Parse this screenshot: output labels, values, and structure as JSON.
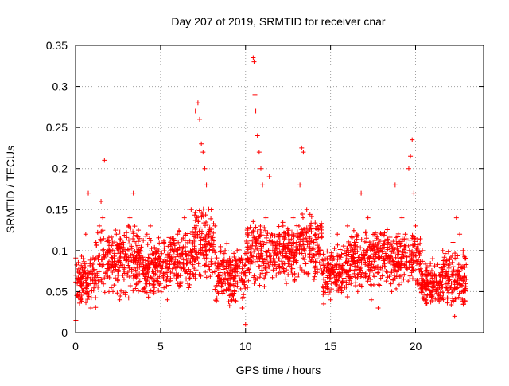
{
  "chart_data": {
    "type": "scatter",
    "title": "Day 207 of 2019, SRMTID for receiver cnar",
    "xlabel": "GPS time / hours",
    "ylabel": "SRMTID / TECUs",
    "xlim": [
      0,
      24
    ],
    "ylim": [
      0,
      0.35
    ],
    "xticks": [
      0,
      5,
      10,
      15,
      20
    ],
    "xtick_labels": [
      "0",
      "5",
      "10",
      "15",
      "20"
    ],
    "yticks": [
      0,
      0.05,
      0.1,
      0.15,
      0.2,
      0.25,
      0.3,
      0.35
    ],
    "ytick_labels": [
      "0",
      "0.05",
      "0.1",
      "0.15",
      "0.2",
      "0.25",
      "0.3",
      "0.35"
    ],
    "grid": true,
    "marker": "+",
    "color": "#ff0000",
    "points": [
      [
        0.02,
        0.015
      ],
      [
        0.1,
        0.06
      ],
      [
        0.2,
        0.065
      ],
      [
        0.3,
        0.04
      ],
      [
        0.45,
        0.09
      ],
      [
        0.6,
        0.12
      ],
      [
        0.75,
        0.17
      ],
      [
        0.9,
        0.03
      ],
      [
        1.0,
        0.08
      ],
      [
        1.2,
        0.11
      ],
      [
        1.4,
        0.13
      ],
      [
        1.5,
        0.16
      ],
      [
        1.6,
        0.14
      ],
      [
        1.7,
        0.21
      ],
      [
        1.85,
        0.07
      ],
      [
        2.0,
        0.1
      ],
      [
        2.2,
        0.05
      ],
      [
        2.4,
        0.12
      ],
      [
        2.6,
        0.04
      ],
      [
        2.8,
        0.11
      ],
      [
        3.0,
        0.09
      ],
      [
        3.2,
        0.14
      ],
      [
        3.4,
        0.17
      ],
      [
        3.6,
        0.06
      ],
      [
        3.8,
        0.1
      ],
      [
        4.0,
        0.08
      ],
      [
        4.2,
        0.12
      ],
      [
        4.4,
        0.13
      ],
      [
        4.6,
        0.05
      ],
      [
        4.8,
        0.09
      ],
      [
        5.0,
        0.06
      ],
      [
        5.2,
        0.11
      ],
      [
        5.4,
        0.04
      ],
      [
        5.6,
        0.1
      ],
      [
        5.8,
        0.07
      ],
      [
        6.0,
        0.12
      ],
      [
        6.2,
        0.09
      ],
      [
        6.4,
        0.14
      ],
      [
        6.6,
        0.06
      ],
      [
        6.8,
        0.15
      ],
      [
        7.0,
        0.1
      ],
      [
        7.05,
        0.27
      ],
      [
        7.2,
        0.28
      ],
      [
        7.3,
        0.26
      ],
      [
        7.4,
        0.23
      ],
      [
        7.5,
        0.22
      ],
      [
        7.6,
        0.2
      ],
      [
        7.7,
        0.18
      ],
      [
        7.8,
        0.12
      ],
      [
        8.0,
        0.09
      ],
      [
        8.2,
        0.13
      ],
      [
        8.4,
        0.07
      ],
      [
        8.6,
        0.05
      ],
      [
        8.8,
        0.1
      ],
      [
        9.0,
        0.08
      ],
      [
        9.2,
        0.04
      ],
      [
        9.4,
        0.06
      ],
      [
        9.6,
        0.09
      ],
      [
        9.8,
        0.03
      ],
      [
        10.0,
        0.01
      ],
      [
        10.1,
        0.12
      ],
      [
        10.3,
        0.08
      ],
      [
        10.45,
        0.335
      ],
      [
        10.5,
        0.33
      ],
      [
        10.55,
        0.29
      ],
      [
        10.6,
        0.27
      ],
      [
        10.7,
        0.24
      ],
      [
        10.8,
        0.22
      ],
      [
        10.9,
        0.2
      ],
      [
        11.0,
        0.18
      ],
      [
        11.2,
        0.14
      ],
      [
        11.4,
        0.19
      ],
      [
        11.6,
        0.1
      ],
      [
        11.8,
        0.07
      ],
      [
        12.0,
        0.12
      ],
      [
        12.2,
        0.13
      ],
      [
        12.4,
        0.06
      ],
      [
        12.6,
        0.09
      ],
      [
        12.8,
        0.14
      ],
      [
        13.0,
        0.11
      ],
      [
        13.2,
        0.18
      ],
      [
        13.3,
        0.225
      ],
      [
        13.4,
        0.22
      ],
      [
        13.6,
        0.15
      ],
      [
        13.8,
        0.13
      ],
      [
        14.0,
        0.11
      ],
      [
        14.2,
        0.09
      ],
      [
        14.4,
        0.08
      ],
      [
        14.6,
        0.035
      ],
      [
        14.8,
        0.06
      ],
      [
        15.0,
        0.04
      ],
      [
        15.2,
        0.09
      ],
      [
        15.4,
        0.12
      ],
      [
        15.6,
        0.07
      ],
      [
        15.8,
        0.1
      ],
      [
        16.0,
        0.13
      ],
      [
        16.2,
        0.06
      ],
      [
        16.4,
        0.11
      ],
      [
        16.6,
        0.05
      ],
      [
        16.8,
        0.17
      ],
      [
        17.0,
        0.09
      ],
      [
        17.2,
        0.14
      ],
      [
        17.4,
        0.04
      ],
      [
        17.6,
        0.1
      ],
      [
        17.8,
        0.03
      ],
      [
        18.0,
        0.12
      ],
      [
        18.2,
        0.08
      ],
      [
        18.4,
        0.11
      ],
      [
        18.6,
        0.05
      ],
      [
        18.8,
        0.18
      ],
      [
        19.0,
        0.1
      ],
      [
        19.2,
        0.14
      ],
      [
        19.4,
        0.12
      ],
      [
        19.6,
        0.2
      ],
      [
        19.7,
        0.215
      ],
      [
        19.8,
        0.235
      ],
      [
        19.9,
        0.17
      ],
      [
        20.0,
        0.13
      ],
      [
        20.2,
        0.06
      ],
      [
        20.4,
        0.1
      ],
      [
        20.6,
        0.04
      ],
      [
        20.8,
        0.08
      ],
      [
        21.0,
        0.09
      ],
      [
        21.2,
        0.05
      ],
      [
        21.4,
        0.07
      ],
      [
        21.6,
        0.1
      ],
      [
        21.8,
        0.06
      ],
      [
        22.0,
        0.09
      ],
      [
        22.2,
        0.11
      ],
      [
        22.3,
        0.02
      ],
      [
        22.4,
        0.14
      ],
      [
        22.5,
        0.06
      ],
      [
        22.6,
        0.12
      ],
      [
        22.7,
        0.08
      ],
      [
        22.8,
        0.1
      ],
      [
        22.9,
        0.07
      ]
    ],
    "clusters": [
      {
        "x": [
          0,
          1.2
        ],
        "y": [
          0.03,
          0.1
        ],
        "n": 110
      },
      {
        "x": [
          1.2,
          2.6
        ],
        "y": [
          0.04,
          0.13
        ],
        "n": 120
      },
      {
        "x": [
          2.6,
          4.0
        ],
        "y": [
          0.04,
          0.14
        ],
        "n": 140
      },
      {
        "x": [
          4.0,
          5.5
        ],
        "y": [
          0.04,
          0.12
        ],
        "n": 150
      },
      {
        "x": [
          5.5,
          7.0
        ],
        "y": [
          0.05,
          0.13
        ],
        "n": 150
      },
      {
        "x": [
          7.0,
          8.2
        ],
        "y": [
          0.06,
          0.16
        ],
        "n": 120
      },
      {
        "x": [
          8.2,
          10.0
        ],
        "y": [
          0.03,
          0.11
        ],
        "n": 180
      },
      {
        "x": [
          10.0,
          11.5
        ],
        "y": [
          0.05,
          0.14
        ],
        "n": 140
      },
      {
        "x": [
          11.5,
          13.0
        ],
        "y": [
          0.06,
          0.14
        ],
        "n": 150
      },
      {
        "x": [
          13.0,
          14.5
        ],
        "y": [
          0.06,
          0.15
        ],
        "n": 140
      },
      {
        "x": [
          14.5,
          16.0
        ],
        "y": [
          0.04,
          0.11
        ],
        "n": 150
      },
      {
        "x": [
          16.0,
          17.5
        ],
        "y": [
          0.05,
          0.13
        ],
        "n": 150
      },
      {
        "x": [
          17.5,
          19.0
        ],
        "y": [
          0.05,
          0.13
        ],
        "n": 150
      },
      {
        "x": [
          19.0,
          20.3
        ],
        "y": [
          0.05,
          0.13
        ],
        "n": 120
      },
      {
        "x": [
          20.3,
          21.5
        ],
        "y": [
          0.03,
          0.09
        ],
        "n": 130
      },
      {
        "x": [
          21.5,
          23.0
        ],
        "y": [
          0.03,
          0.1
        ],
        "n": 150
      }
    ]
  }
}
